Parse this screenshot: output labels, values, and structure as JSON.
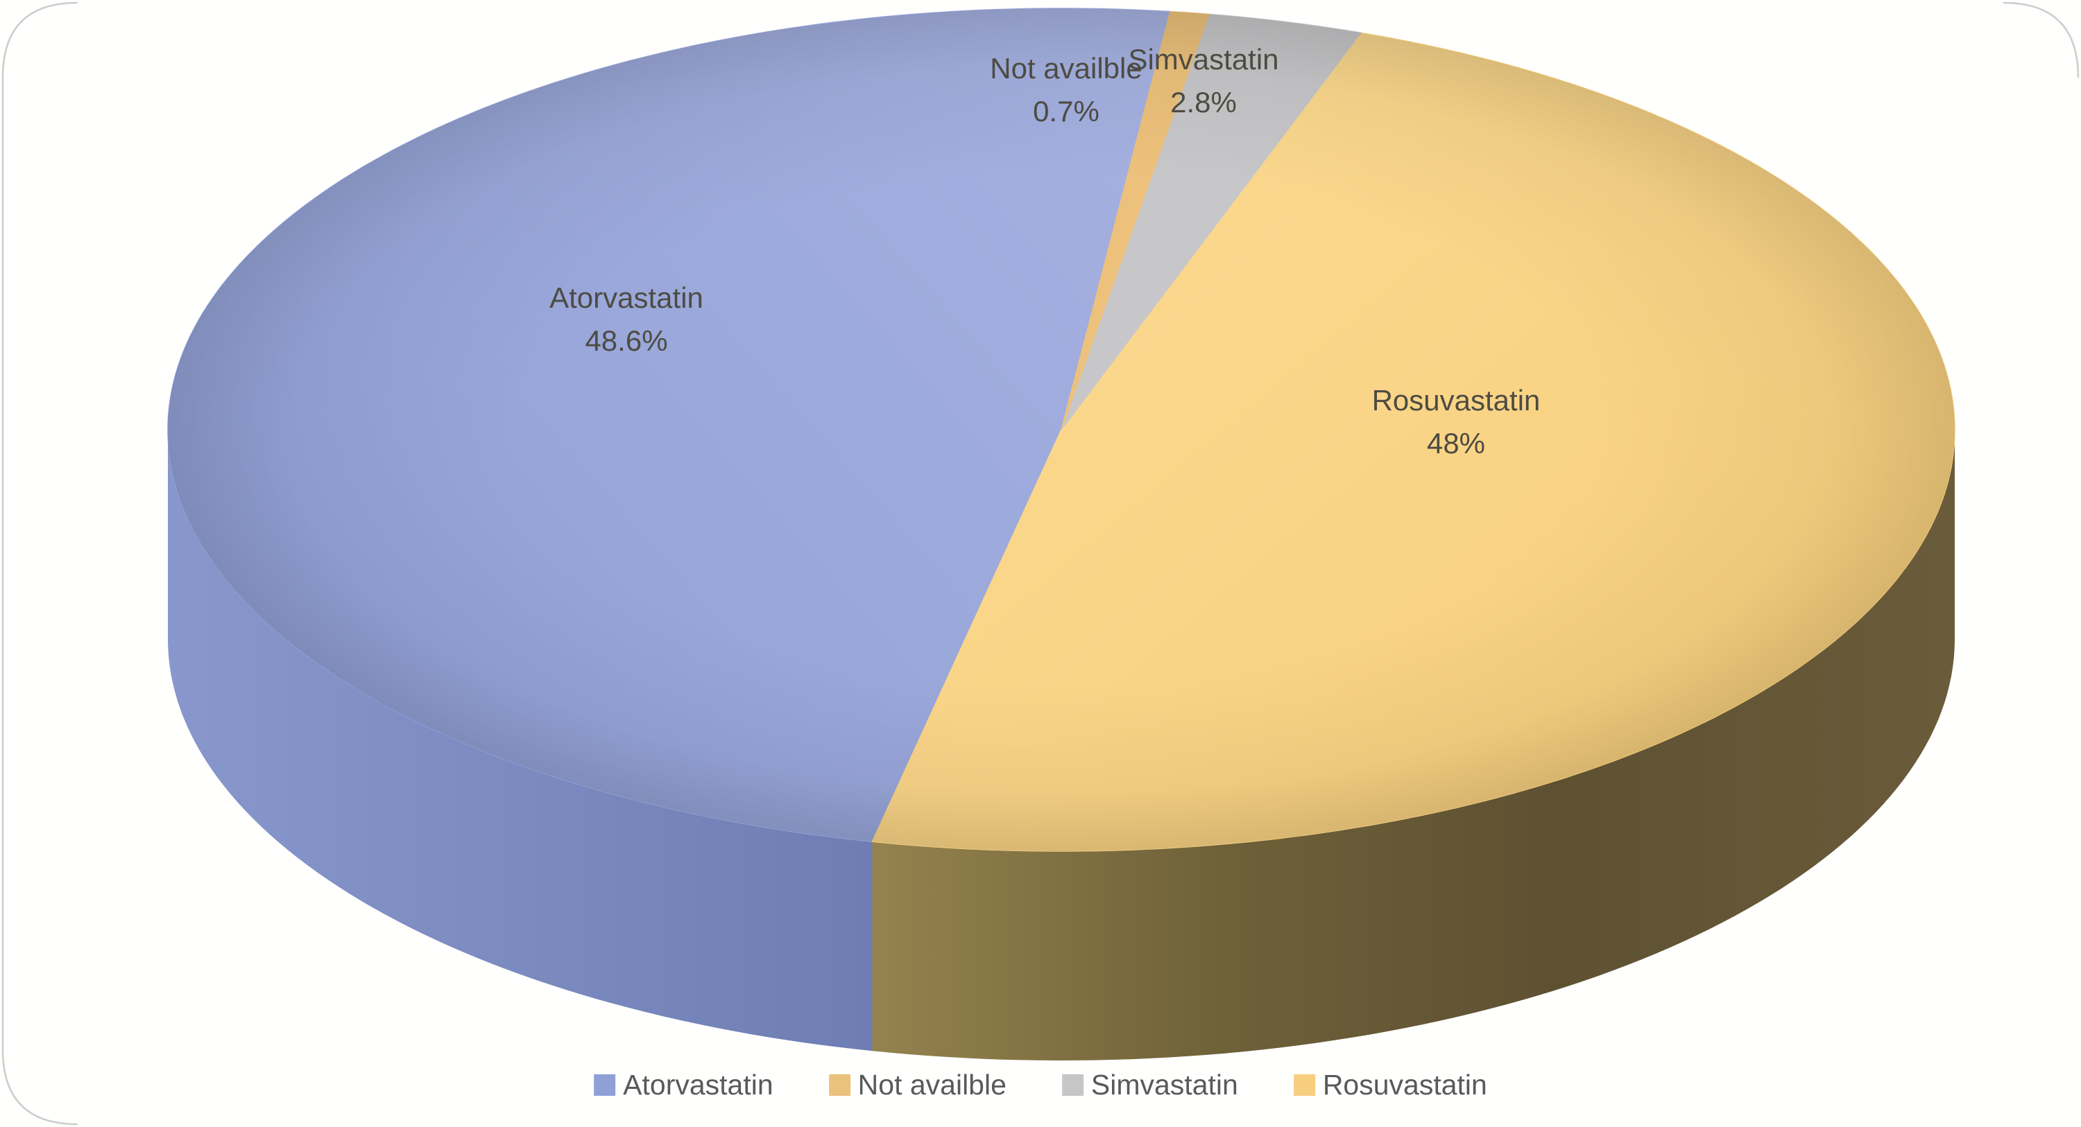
{
  "chart_data": {
    "type": "pie",
    "projection": "3d",
    "title": "",
    "unit": "%",
    "legend_position": "bottom",
    "data_labels_shown": true,
    "label_color": "#4D4B42",
    "legend_text_color": "#595959",
    "series": [
      {
        "name": "Atorvastatin",
        "value": 48.6,
        "pct_label": "48.6%",
        "color": "#99A8DB",
        "legend_color": "#8FA0D6",
        "wall_colors": [
          "#8897CC",
          "#6E7DB3"
        ]
      },
      {
        "name": "Not availble",
        "value": 0.7,
        "pct_label": "0.7%",
        "color": "#ECC17B",
        "legend_color": "#EBC27C"
      },
      {
        "name": "Simvastatin",
        "value": 2.8,
        "pct_label": "2.8%",
        "color": "#C7C7C9",
        "legend_color": "#C6C6C6"
      },
      {
        "name": "Rosuvastatin",
        "value": 48,
        "pct_label": "48%",
        "color": "#FAD385",
        "legend_color": "#F7CE7E",
        "wall_colors": [
          "#94834E",
          "#6E6038",
          "#5E5132",
          "#6A5C3A"
        ]
      }
    ]
  }
}
